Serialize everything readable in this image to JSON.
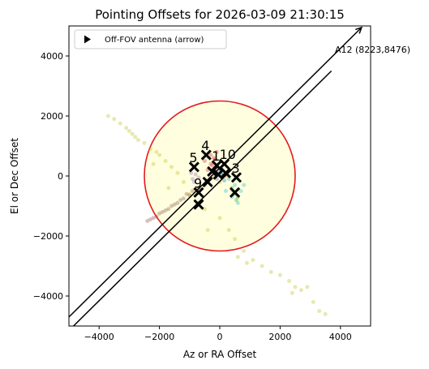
{
  "chart_data": {
    "type": "scatter",
    "title": "Pointing Offsets for 2026-03-09 21:30:15",
    "xlabel": "Az or RA Offset",
    "ylabel": "El or Dec Offset",
    "xlim": [
      -5000,
      5000
    ],
    "ylim": [
      -5000,
      5000
    ],
    "xticks": [
      -4000,
      -2000,
      0,
      2000,
      4000
    ],
    "yticks": [
      -4000,
      -2000,
      0,
      2000,
      4000
    ],
    "xtick_labels": [
      "−4000",
      "−2000",
      "0",
      "2000",
      "4000"
    ],
    "ytick_labels": [
      "−4000",
      "−2000",
      "0",
      "2000",
      "4000"
    ],
    "grid": false,
    "legend": {
      "placement": "upper-left",
      "entries": [
        {
          "label": "Off-FOV antenna (arrow)",
          "marker": "triangle-right",
          "color": "#000000"
        }
      ]
    },
    "fov_circle": {
      "center": [
        0,
        0
      ],
      "radius": 2500,
      "edge_color": "#e31a1c",
      "fill_color": "#ffffe0"
    },
    "off_fov_arrows": [
      {
        "label": "A12 (8223,8476)",
        "from": [
          -5000,
          -4700
        ],
        "to": [
          4700,
          4950
        ],
        "color": "#000000"
      },
      {
        "from": [
          -5000,
          -5150
        ],
        "to": [
          3700,
          3500
        ],
        "color": "#000000"
      }
    ],
    "clouds": [
      {
        "color": "#bcbd22",
        "points": [
          [
            -3500,
            1900
          ],
          [
            -3300,
            1750
          ],
          [
            -3100,
            1600
          ],
          [
            -3000,
            1500
          ],
          [
            -2800,
            1300
          ],
          [
            -2700,
            1200
          ],
          [
            -2500,
            1100
          ],
          [
            -2300,
            900
          ],
          [
            -2000,
            700
          ],
          [
            -1800,
            500
          ],
          [
            -1600,
            300
          ],
          [
            -1400,
            100
          ],
          [
            -3700,
            2000
          ],
          [
            -2900,
            1400
          ],
          [
            -2100,
            800
          ],
          [
            -1200,
            -200
          ],
          [
            -1000,
            -600
          ],
          [
            -700,
            -900
          ],
          [
            -500,
            -1100
          ],
          [
            0,
            -1400
          ],
          [
            300,
            -1800
          ],
          [
            500,
            -2100
          ],
          [
            800,
            -2500
          ],
          [
            1100,
            -2800
          ],
          [
            1400,
            -3000
          ],
          [
            1700,
            -3200
          ],
          [
            2000,
            -3300
          ],
          [
            2300,
            -3500
          ],
          [
            2500,
            -3700
          ],
          [
            2700,
            -3800
          ],
          [
            2900,
            -3700
          ],
          [
            3100,
            -4200
          ],
          [
            3300,
            -4500
          ],
          [
            3500,
            -4600
          ],
          [
            600,
            -2700
          ],
          [
            900,
            -2900
          ],
          [
            2400,
            -3900
          ],
          [
            -1700,
            -400
          ],
          [
            -2200,
            400
          ],
          [
            -400,
            -1800
          ]
        ]
      },
      {
        "color": "#8c564b",
        "points": [
          [
            -2400,
            -1500
          ],
          [
            -2200,
            -1400
          ],
          [
            -2100,
            -1350
          ],
          [
            -1900,
            -1200
          ],
          [
            -1700,
            -1100
          ],
          [
            -1500,
            -950
          ],
          [
            -1300,
            -800
          ],
          [
            -1100,
            -600
          ],
          [
            -900,
            -500
          ],
          [
            -700,
            -400
          ],
          [
            -500,
            -300
          ],
          [
            -2300,
            -1450
          ],
          [
            -2000,
            -1250
          ],
          [
            -1800,
            -1150
          ],
          [
            -1600,
            -1000
          ],
          [
            -1400,
            -900
          ],
          [
            -1200,
            -750
          ],
          [
            -1000,
            -650
          ]
        ]
      },
      {
        "color": "#d62728",
        "points": [
          [
            -400,
            200
          ],
          [
            -300,
            400
          ],
          [
            -200,
            600
          ],
          [
            -100,
            800
          ],
          [
            -300,
            700
          ],
          [
            -500,
            500
          ],
          [
            -250,
            350
          ],
          [
            -150,
            550
          ]
        ]
      },
      {
        "color": "#9467bd",
        "points": [
          [
            -900,
            -100
          ],
          [
            -800,
            50
          ],
          [
            -950,
            100
          ],
          [
            -700,
            -50
          ],
          [
            -850,
            -200
          ]
        ]
      },
      {
        "color": "#17becf",
        "points": [
          [
            300,
            -100
          ],
          [
            500,
            -300
          ],
          [
            700,
            -500
          ],
          [
            400,
            -700
          ],
          [
            600,
            -900
          ],
          [
            200,
            -500
          ],
          [
            800,
            -300
          ]
        ]
      },
      {
        "color": "#2ca02c",
        "points": [
          [
            400,
            -400
          ],
          [
            500,
            -600
          ],
          [
            600,
            -700
          ],
          [
            450,
            -500
          ],
          [
            550,
            -800
          ]
        ]
      },
      {
        "color": "#1f77b4",
        "points": [
          [
            -100,
            -100
          ],
          [
            50,
            50
          ],
          [
            150,
            -150
          ],
          [
            -50,
            150
          ],
          [
            100,
            100
          ]
        ]
      },
      {
        "color": "#ff7f0e",
        "points": [
          [
            -200,
            0
          ],
          [
            0,
            -200
          ],
          [
            200,
            0
          ]
        ]
      }
    ],
    "antennas": [
      {
        "label": "4",
        "x": -450,
        "y": 700
      },
      {
        "label": "10",
        "x": 150,
        "y": 400
      },
      {
        "label": "1",
        "x": -100,
        "y": 350
      },
      {
        "label": "5",
        "x": -850,
        "y": 300
      },
      {
        "label": "3",
        "x": 550,
        "y": -50
      },
      {
        "label": "9",
        "x": -700,
        "y": -550
      },
      {
        "label": "",
        "x": -50,
        "y": 50
      },
      {
        "label": "",
        "x": -250,
        "y": 150
      },
      {
        "label": "",
        "x": 200,
        "y": 100
      },
      {
        "label": "",
        "x": -400,
        "y": -200
      },
      {
        "label": "",
        "x": 500,
        "y": -550
      },
      {
        "label": "",
        "x": -700,
        "y": -950
      }
    ]
  }
}
